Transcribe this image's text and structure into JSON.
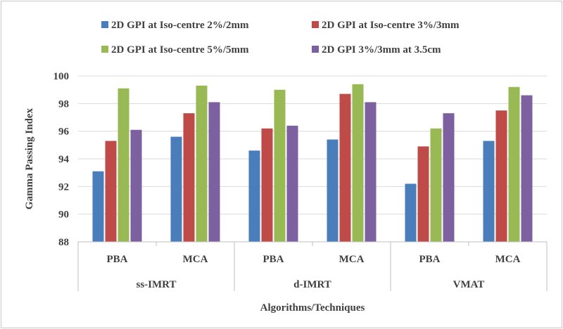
{
  "chart_data": {
    "type": "bar",
    "title": "",
    "ylabel": "Gamma  Passing Index",
    "xlabel": "Algorithms/Techniques",
    "ylim": [
      88,
      100
    ],
    "yticks": [
      88,
      90,
      92,
      94,
      96,
      98,
      100
    ],
    "groups": [
      {
        "label": "ss-IMRT",
        "categories": [
          "PBA",
          "MCA"
        ]
      },
      {
        "label": "d-IMRT",
        "categories": [
          "PBA",
          "MCA"
        ]
      },
      {
        "label": "VMAT",
        "categories": [
          "PBA",
          "MCA"
        ]
      }
    ],
    "categories": [
      "PBA",
      "MCA",
      "PBA",
      "MCA",
      "PBA",
      "MCA"
    ],
    "series": [
      {
        "name": "2D GPI at Iso-centre 2%/2mm",
        "color": "#4a7ebb",
        "values": [
          93.1,
          95.6,
          94.6,
          95.4,
          92.2,
          95.3
        ]
      },
      {
        "name": "2D GPI at Iso-centre 3%/3mm",
        "color": "#be4b48",
        "values": [
          95.3,
          97.3,
          96.2,
          98.7,
          94.9,
          97.5
        ]
      },
      {
        "name": "2D GPI at Iso-centre 5%/5mm",
        "color": "#98b954",
        "values": [
          99.1,
          99.3,
          99.0,
          99.4,
          96.2,
          99.2
        ]
      },
      {
        "name": "2D GPI 3%/3mm at 3.5cm",
        "color": "#7d60a0",
        "values": [
          96.1,
          98.1,
          96.4,
          98.1,
          97.3,
          98.6
        ]
      }
    ],
    "grid": true,
    "legend_position": "top"
  }
}
